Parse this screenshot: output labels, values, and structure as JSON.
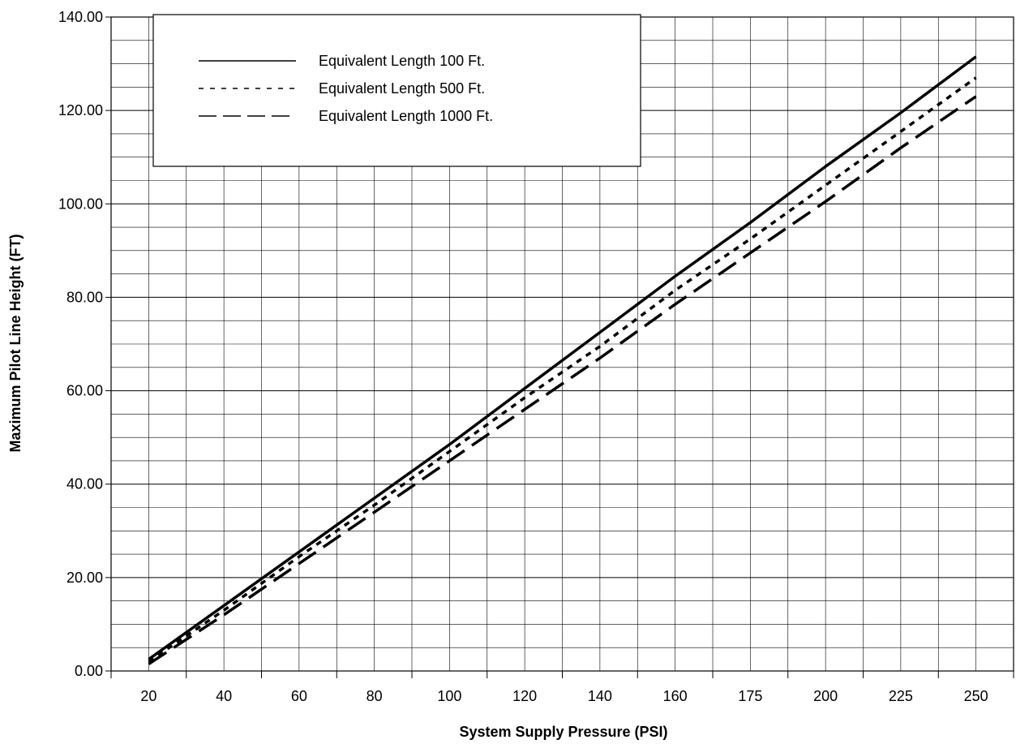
{
  "chart_data": {
    "type": "line",
    "xlabel": "System Supply Pressure (PSI)",
    "ylabel": "Maximum Pilot Line Height (FT)",
    "categories": [
      "20",
      "40",
      "60",
      "80",
      "100",
      "120",
      "140",
      "160",
      "175",
      "200",
      "225",
      "250"
    ],
    "y_ticks": [
      "0.00",
      "20.00",
      "40.00",
      "60.00",
      "80.00",
      "100.00",
      "120.00",
      "140.00"
    ],
    "ylim": [
      0,
      140
    ],
    "grid": true,
    "legend_position": "top-left",
    "series": [
      {
        "name": "Equivalent Length 100 Ft.",
        "dash": "solid",
        "values": [
          2.5,
          14.0,
          25.5,
          37.0,
          48.5,
          60.5,
          72.5,
          84.5,
          96.0,
          108.0,
          119.5,
          131.5
        ]
      },
      {
        "name": "Equivalent Length 500 Ft.",
        "dash": "dotted",
        "values": [
          2.0,
          13.0,
          24.5,
          35.5,
          47.0,
          58.5,
          69.5,
          81.5,
          92.5,
          104.0,
          115.5,
          127.0
        ]
      },
      {
        "name": "Equivalent Length 1000 Ft.",
        "dash": "dashed",
        "values": [
          1.5,
          12.0,
          23.0,
          34.0,
          45.0,
          56.0,
          67.0,
          78.5,
          89.5,
          100.5,
          112.0,
          123.0
        ]
      }
    ]
  }
}
